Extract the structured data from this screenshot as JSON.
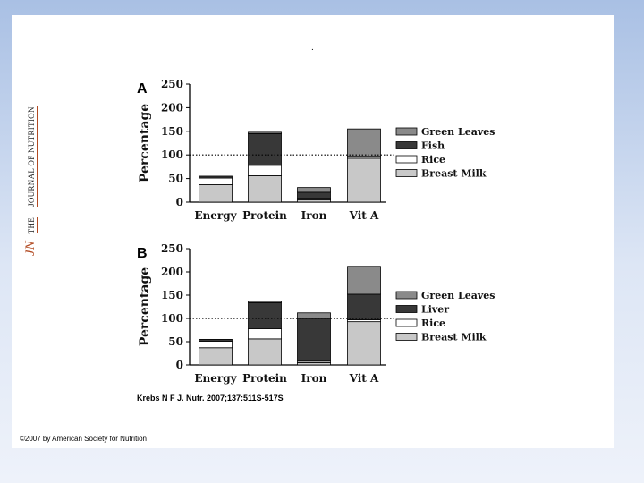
{
  "slide": {
    "dot": ".",
    "journal_logo": {
      "abbrev": "JN",
      "the": "THE",
      "name": "JOURNAL OF NUTRITION"
    },
    "citation": "Krebs N F J. Nutr. 2007;137:511S-517S",
    "copyright": "©2007 by American Society for Nutrition"
  },
  "colors": {
    "Green Leaves": "#8a8a8a",
    "Fish": "#383838",
    "Liver": "#383838",
    "Rice": "#ffffff",
    "Breast Milk": "#c8c8c8"
  },
  "chart_data": [
    {
      "type": "bar",
      "stacked": true,
      "panel_label": "A",
      "ylabel": "Percentage",
      "xlabel": "",
      "ylim": [
        0,
        250
      ],
      "yticks": [
        0,
        50,
        100,
        150,
        200,
        250
      ],
      "reference_line": 100,
      "categories": [
        "Energy",
        "Protein",
        "Iron",
        "Vit A"
      ],
      "legend": [
        "Green Leaves",
        "Fish",
        "Rice",
        "Breast Milk"
      ],
      "series": [
        {
          "name": "Breast Milk",
          "values": [
            37,
            56,
            5,
            93
          ]
        },
        {
          "name": "Rice",
          "values": [
            14,
            22,
            3,
            4
          ]
        },
        {
          "name": "Fish",
          "values": [
            4,
            67,
            13,
            0
          ]
        },
        {
          "name": "Green Leaves",
          "values": [
            0,
            3,
            10,
            58
          ]
        }
      ]
    },
    {
      "type": "bar",
      "stacked": true,
      "panel_label": "B",
      "ylabel": "Percentage",
      "xlabel": "",
      "ylim": [
        0,
        250
      ],
      "yticks": [
        0,
        50,
        100,
        150,
        200,
        250
      ],
      "reference_line": 100,
      "categories": [
        "Energy",
        "Protein",
        "Iron",
        "Vit A"
      ],
      "legend": [
        "Green Leaves",
        "Liver",
        "Rice",
        "Breast Milk"
      ],
      "series": [
        {
          "name": "Breast Milk",
          "values": [
            37,
            56,
            5,
            93
          ]
        },
        {
          "name": "Rice",
          "values": [
            14,
            22,
            3,
            4
          ]
        },
        {
          "name": "Liver",
          "values": [
            4,
            56,
            92,
            55
          ]
        },
        {
          "name": "Green Leaves",
          "values": [
            0,
            3,
            12,
            60
          ]
        }
      ]
    }
  ]
}
